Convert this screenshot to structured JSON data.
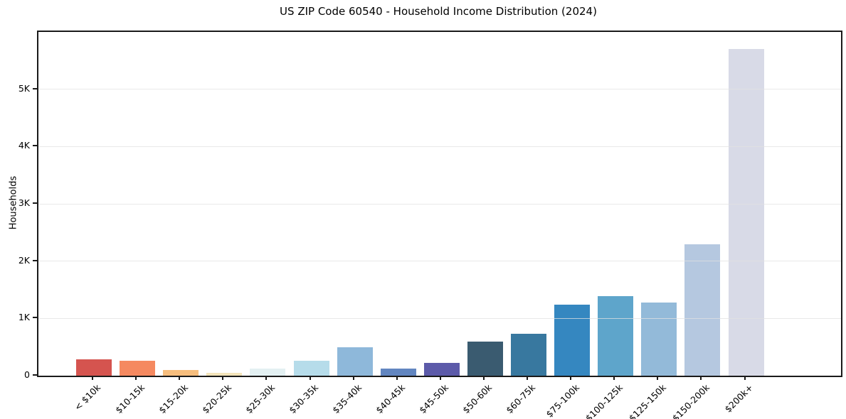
{
  "chart_data": {
    "type": "bar",
    "title": "US ZIP Code 60540 - Household Income Distribution (2024)",
    "xlabel": "",
    "ylabel": "Households",
    "categories": [
      "< $10k",
      "$10-15k",
      "$15-20k",
      "$20-25k",
      "$25-30k",
      "$30-35k",
      "$35-40k",
      "$40-45k",
      "$45-50k",
      "$50-60k",
      "$60-75k",
      "$75-100k",
      "$100-125k",
      "$125-150k",
      "$150-200k",
      "$200k+"
    ],
    "values": [
      290,
      265,
      95,
      45,
      130,
      255,
      490,
      125,
      225,
      600,
      735,
      1240,
      1390,
      1280,
      2290,
      5700
    ],
    "bar_colors": [
      "#d5544f",
      "#f58960",
      "#f6bd7d",
      "#f3e4ba",
      "#e3f0f2",
      "#b6dcea",
      "#8eb8da",
      "#6286c0",
      "#5c5aa9",
      "#3a5b70",
      "#38789f",
      "#3587c0",
      "#5ea5cb",
      "#93bad9",
      "#b5c8e0",
      "#d8dae7"
    ],
    "ylim": [
      0,
      6000
    ],
    "yticks": [
      {
        "value": 0,
        "label": "0"
      },
      {
        "value": 1000,
        "label": "1K"
      },
      {
        "value": 2000,
        "label": "2K"
      },
      {
        "value": 3000,
        "label": "3K"
      },
      {
        "value": 4000,
        "label": "4K"
      },
      {
        "value": 5000,
        "label": "5K"
      }
    ],
    "grid": "horizontal-only",
    "legend": "none"
  },
  "colors": {
    "background": "#ffffff",
    "spine": "#1a1a1a",
    "grid": "#e1e1e1",
    "text": "#000000"
  }
}
